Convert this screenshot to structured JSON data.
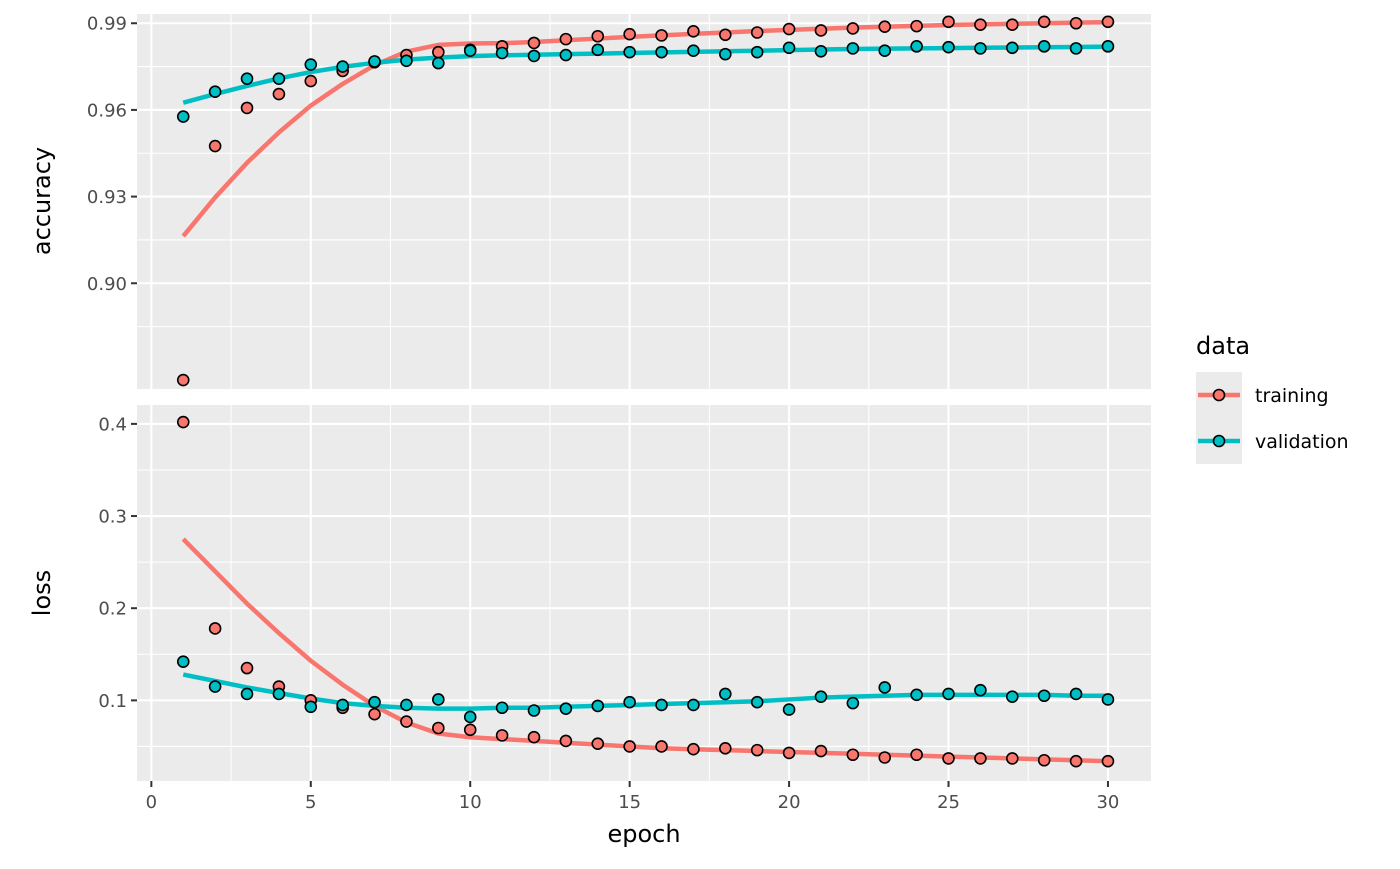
{
  "chart_data": {
    "type": "scatter",
    "title": "",
    "xlabel": "epoch",
    "x": [
      1,
      2,
      3,
      4,
      5,
      6,
      7,
      8,
      9,
      10,
      11,
      12,
      13,
      14,
      15,
      16,
      17,
      18,
      19,
      20,
      21,
      22,
      23,
      24,
      25,
      26,
      27,
      28,
      29,
      30
    ],
    "xlim": [
      -0.45,
      31.35
    ],
    "x_ticks": [
      0,
      5,
      10,
      15,
      20,
      25,
      30
    ],
    "x_minor_ticks": [
      2.5,
      7.5,
      12.5,
      17.5,
      22.5,
      27.5
    ],
    "grid": true,
    "legend": {
      "title": "data",
      "position": "right",
      "entries": [
        "training",
        "validation"
      ]
    },
    "colors": {
      "training": "#f8766d",
      "validation": "#00bfc4"
    },
    "panels": [
      {
        "ylabel": "accuracy",
        "ylim": [
          0.8634,
          0.9932
        ],
        "y_ticks": [
          0.9,
          0.93,
          0.96,
          0.99
        ],
        "y_tick_labels": [
          "0.90",
          "0.93",
          "0.96",
          "0.99"
        ],
        "y_minor_ticks": [
          0.885,
          0.915,
          0.945,
          0.975
        ],
        "series": [
          {
            "name": "training",
            "values": [
              0.8665,
              0.9475,
              0.9607,
              0.9655,
              0.97,
              0.9735,
              0.9765,
              0.979,
              0.98,
              0.9808,
              0.982,
              0.9832,
              0.9845,
              0.9855,
              0.9862,
              0.9858,
              0.9872,
              0.986,
              0.9868,
              0.988,
              0.9875,
              0.9882,
              0.9888,
              0.989,
              0.9905,
              0.9895,
              0.9895,
              0.9905,
              0.99,
              0.9905
            ],
            "smooth": [
              0.9163,
              0.9297,
              0.9417,
              0.9522,
              0.9615,
              0.969,
              0.9755,
              0.9802,
              0.9825,
              0.983,
              0.9831,
              0.9835,
              0.9841,
              0.9847,
              0.9853,
              0.9858,
              0.9863,
              0.9868,
              0.9873,
              0.9877,
              0.9881,
              0.9885,
              0.9888,
              0.9891,
              0.9894,
              0.9896,
              0.9898,
              0.99,
              0.9902,
              0.9904
            ]
          },
          {
            "name": "validation",
            "values": [
              0.9577,
              0.9663,
              0.9708,
              0.9708,
              0.9757,
              0.975,
              0.9768,
              0.977,
              0.9762,
              0.9805,
              0.9797,
              0.9787,
              0.979,
              0.9808,
              0.98,
              0.98,
              0.9805,
              0.9793,
              0.98,
              0.9815,
              0.9803,
              0.9813,
              0.9805,
              0.982,
              0.9817,
              0.9813,
              0.9815,
              0.982,
              0.9813,
              0.982
            ],
            "smooth": [
              0.9625,
              0.9655,
              0.9683,
              0.9709,
              0.9731,
              0.9749,
              0.9763,
              0.9774,
              0.9781,
              0.9786,
              0.9789,
              0.9791,
              0.9793,
              0.9795,
              0.9797,
              0.9799,
              0.9801,
              0.9803,
              0.9805,
              0.9807,
              0.9809,
              0.9811,
              0.9812,
              0.9813,
              0.9814,
              0.9815,
              0.9816,
              0.9817,
              0.9818,
              0.9819
            ]
          }
        ]
      },
      {
        "ylabel": "loss",
        "ylim": [
          0.0125,
          0.4205
        ],
        "y_ticks": [
          0.1,
          0.2,
          0.3,
          0.4
        ],
        "y_tick_labels": [
          "0.1",
          "0.2",
          "0.3",
          "0.4"
        ],
        "y_minor_ticks": [
          0.05,
          0.15,
          0.25,
          0.35
        ],
        "series": [
          {
            "name": "training",
            "values": [
              0.402,
              0.178,
              0.135,
              0.115,
              0.1,
              0.092,
              0.085,
              0.077,
              0.07,
              0.068,
              0.062,
              0.06,
              0.056,
              0.053,
              0.05,
              0.05,
              0.047,
              0.048,
              0.046,
              0.043,
              0.045,
              0.041,
              0.038,
              0.041,
              0.037,
              0.037,
              0.037,
              0.035,
              0.034,
              0.034
            ],
            "smooth": [
              0.275,
              0.24,
              0.205,
              0.173,
              0.143,
              0.117,
              0.094,
              0.076,
              0.064,
              0.06,
              0.058,
              0.056,
              0.054,
              0.052,
              0.05,
              0.048,
              0.047,
              0.046,
              0.045,
              0.044,
              0.043,
              0.042,
              0.041,
              0.04,
              0.039,
              0.038,
              0.037,
              0.036,
              0.035,
              0.034
            ]
          },
          {
            "name": "validation",
            "values": [
              0.142,
              0.115,
              0.107,
              0.107,
              0.093,
              0.095,
              0.098,
              0.095,
              0.101,
              0.082,
              0.092,
              0.089,
              0.091,
              0.094,
              0.098,
              0.095,
              0.095,
              0.107,
              0.098,
              0.09,
              0.104,
              0.097,
              0.114,
              0.106,
              0.107,
              0.111,
              0.104,
              0.105,
              0.107,
              0.101
            ],
            "smooth": [
              0.128,
              0.121,
              0.114,
              0.108,
              0.102,
              0.097,
              0.094,
              0.092,
              0.091,
              0.091,
              0.092,
              0.092,
              0.093,
              0.094,
              0.095,
              0.096,
              0.097,
              0.098,
              0.099,
              0.101,
              0.103,
              0.104,
              0.105,
              0.106,
              0.106,
              0.106,
              0.106,
              0.106,
              0.105,
              0.105
            ]
          }
        ]
      }
    ]
  }
}
